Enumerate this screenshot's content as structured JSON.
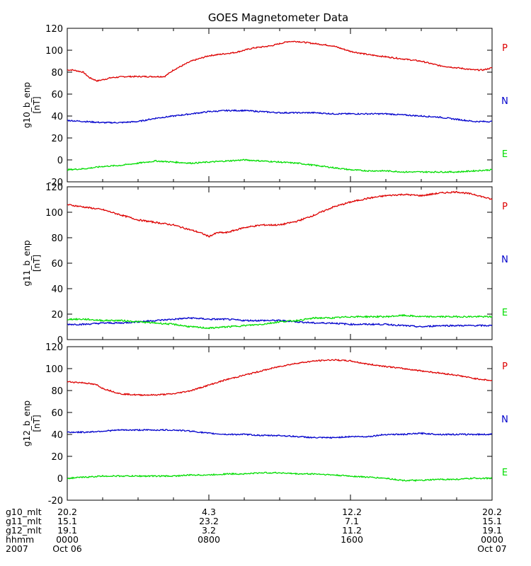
{
  "chart_data": {
    "type": "line",
    "title": "GOES Magnetometer Data",
    "panels": [
      {
        "ylabel": "g10_b_enp",
        "units": "[nT]",
        "ylim": [
          -20,
          120
        ],
        "yticks": [
          "120",
          "100",
          "80",
          "60",
          "40",
          "20",
          "0",
          "-20"
        ],
        "legend": [
          "P",
          "N",
          "E"
        ],
        "series": [
          {
            "name": "P",
            "color": "#dd0000",
            "x": [
              0,
              0.3,
              0.9,
              1.25,
              1.7,
              2.5,
              3.3,
              4.5,
              5.5,
              6,
              7,
              8,
              9.5,
              10.5,
              11.5,
              12,
              12.5,
              13,
              14,
              15,
              16,
              17,
              18,
              19,
              20,
              21,
              22,
              23,
              23.5,
              24
            ],
            "y": [
              82,
              82,
              80,
              75,
              72,
              75,
              76,
              76,
              76,
              82,
              90,
              95,
              98,
              102,
              104,
              106,
              108,
              108,
              106,
              104,
              99,
              96,
              94,
              92,
              90,
              86,
              84,
              82,
              82,
              84
            ]
          },
          {
            "name": "N",
            "color": "#0000cc",
            "x": [
              0,
              1,
              2,
              3,
              4,
              5,
              6,
              7,
              8,
              9,
              10,
              11,
              12,
              13,
              14,
              15,
              16,
              17,
              18,
              19,
              20,
              21,
              22,
              23,
              24
            ],
            "y": [
              36,
              35,
              34,
              34,
              35,
              38,
              40,
              42,
              44,
              45,
              45,
              44,
              43,
              43,
              43,
              42,
              42,
              42,
              42,
              41,
              40,
              39,
              37,
              35,
              35
            ]
          },
          {
            "name": "E",
            "color": "#00dd00",
            "x": [
              0,
              1,
              2,
              3,
              4,
              5,
              6,
              7,
              8,
              9,
              10,
              11,
              12,
              13,
              14,
              15,
              16,
              17,
              18,
              19,
              20,
              21,
              22,
              23,
              24
            ],
            "y": [
              -9,
              -8,
              -6,
              -5,
              -3,
              -1,
              -2,
              -3,
              -2,
              -1,
              0,
              -1,
              -2,
              -3,
              -5,
              -7,
              -9,
              -10,
              -10,
              -11,
              -11,
              -11,
              -11,
              -10,
              -9
            ]
          }
        ]
      },
      {
        "ylabel": "g11_b_enp",
        "units": "[nT]",
        "ylim": [
          0,
          120
        ],
        "yticks": [
          "120",
          "100",
          "80",
          "60",
          "40",
          "20",
          "0"
        ],
        "legend": [
          "P",
          "N",
          "E"
        ],
        "series": [
          {
            "name": "P",
            "color": "#dd0000",
            "x": [
              0,
              1,
              2,
              3,
              4,
              5,
              6,
              6.5,
              7,
              7.5,
              8,
              8.5,
              9,
              10,
              11,
              12,
              13,
              14,
              15,
              16,
              17,
              18,
              19,
              20,
              21,
              22,
              23,
              24
            ],
            "y": [
              106,
              104,
              102,
              98,
              94,
              92,
              90,
              88,
              86,
              84,
              81,
              84,
              84,
              88,
              90,
              90,
              93,
              98,
              104,
              108,
              111,
              113,
              114,
              113,
              115,
              116,
              114,
              110
            ]
          },
          {
            "name": "N",
            "color": "#0000cc",
            "x": [
              0,
              1,
              2,
              3,
              4,
              5,
              6,
              7,
              8,
              9,
              10,
              11,
              12,
              13,
              14,
              15,
              16,
              17,
              18,
              19,
              20,
              21,
              22,
              23,
              24
            ],
            "y": [
              12,
              12,
              13,
              13,
              14,
              15,
              16,
              17,
              16,
              16,
              15,
              15,
              15,
              14,
              13,
              13,
              12,
              12,
              12,
              11,
              10,
              11,
              11,
              11,
              11
            ]
          },
          {
            "name": "E",
            "color": "#00dd00",
            "x": [
              0,
              1,
              2,
              3,
              4,
              5,
              6,
              7,
              8,
              9,
              10,
              11,
              12,
              13,
              14,
              15,
              16,
              17,
              18,
              19,
              20,
              21,
              22,
              23,
              24
            ],
            "y": [
              16,
              16,
              15,
              15,
              14,
              13,
              12,
              10,
              9,
              10,
              11,
              12,
              14,
              15,
              17,
              17,
              18,
              18,
              18,
              19,
              18,
              18,
              18,
              18,
              18
            ]
          }
        ]
      },
      {
        "ylabel": "g12_b_enp",
        "units": "[nT]",
        "ylim": [
          -20,
          120
        ],
        "yticks": [
          "120",
          "100",
          "80",
          "60",
          "40",
          "20",
          "0",
          "-20"
        ],
        "legend": [
          "P",
          "N",
          "E"
        ],
        "series": [
          {
            "name": "P",
            "color": "#dd0000",
            "x": [
              0,
              1,
              1.7,
              2,
              3,
              4,
              5,
              6,
              7,
              8,
              9,
              10,
              11,
              12,
              13,
              14,
              15,
              16,
              17,
              18,
              19,
              20,
              21,
              22,
              23,
              24
            ],
            "y": [
              88,
              87,
              85,
              82,
              77,
              76,
              76,
              77,
              80,
              85,
              90,
              94,
              98,
              102,
              105,
              107,
              108,
              107,
              104,
              102,
              100,
              98,
              96,
              94,
              91,
              89
            ]
          },
          {
            "name": "N",
            "color": "#0000cc",
            "x": [
              0,
              1,
              2,
              3,
              4,
              5,
              6,
              7,
              8,
              9,
              10,
              11,
              12,
              13,
              14,
              15,
              16,
              17,
              18,
              19,
              20,
              21,
              22,
              23,
              24
            ],
            "y": [
              42,
              42,
              43,
              44,
              44,
              44,
              44,
              43,
              41,
              40,
              40,
              39,
              39,
              38,
              37,
              37,
              38,
              38,
              40,
              40,
              41,
              40,
              40,
              40,
              40
            ]
          },
          {
            "name": "E",
            "color": "#00dd00",
            "x": [
              0,
              1,
              2,
              3,
              4,
              5,
              6,
              7,
              8,
              9,
              10,
              11,
              12,
              13,
              14,
              15,
              16,
              17,
              18,
              19,
              20,
              21,
              22,
              23,
              24
            ],
            "y": [
              0,
              1,
              2,
              2,
              2,
              2,
              2,
              3,
              3,
              4,
              4,
              5,
              5,
              4,
              4,
              3,
              2,
              1,
              0,
              -2,
              -2,
              -1,
              -1,
              0,
              0
            ]
          }
        ]
      }
    ],
    "x_ticks_hours": [
      0,
      8,
      16,
      24
    ],
    "footer": {
      "rows": [
        {
          "label": "g10_mlt",
          "values": [
            "20.2",
            "4.3",
            "12.2",
            "20.2"
          ]
        },
        {
          "label": "g11_mlt",
          "values": [
            "15.1",
            "23.2",
            "7.1",
            "15.1"
          ]
        },
        {
          "label": "g12_mlt",
          "values": [
            "19.1",
            "3.2",
            "11.2",
            "19.1"
          ]
        },
        {
          "label": "hhmm",
          "values": [
            "0000",
            "0800",
            "1600",
            "0000"
          ]
        },
        {
          "label": "2007",
          "values": [
            "Oct 06",
            "",
            "",
            "Oct 07"
          ]
        }
      ]
    }
  }
}
